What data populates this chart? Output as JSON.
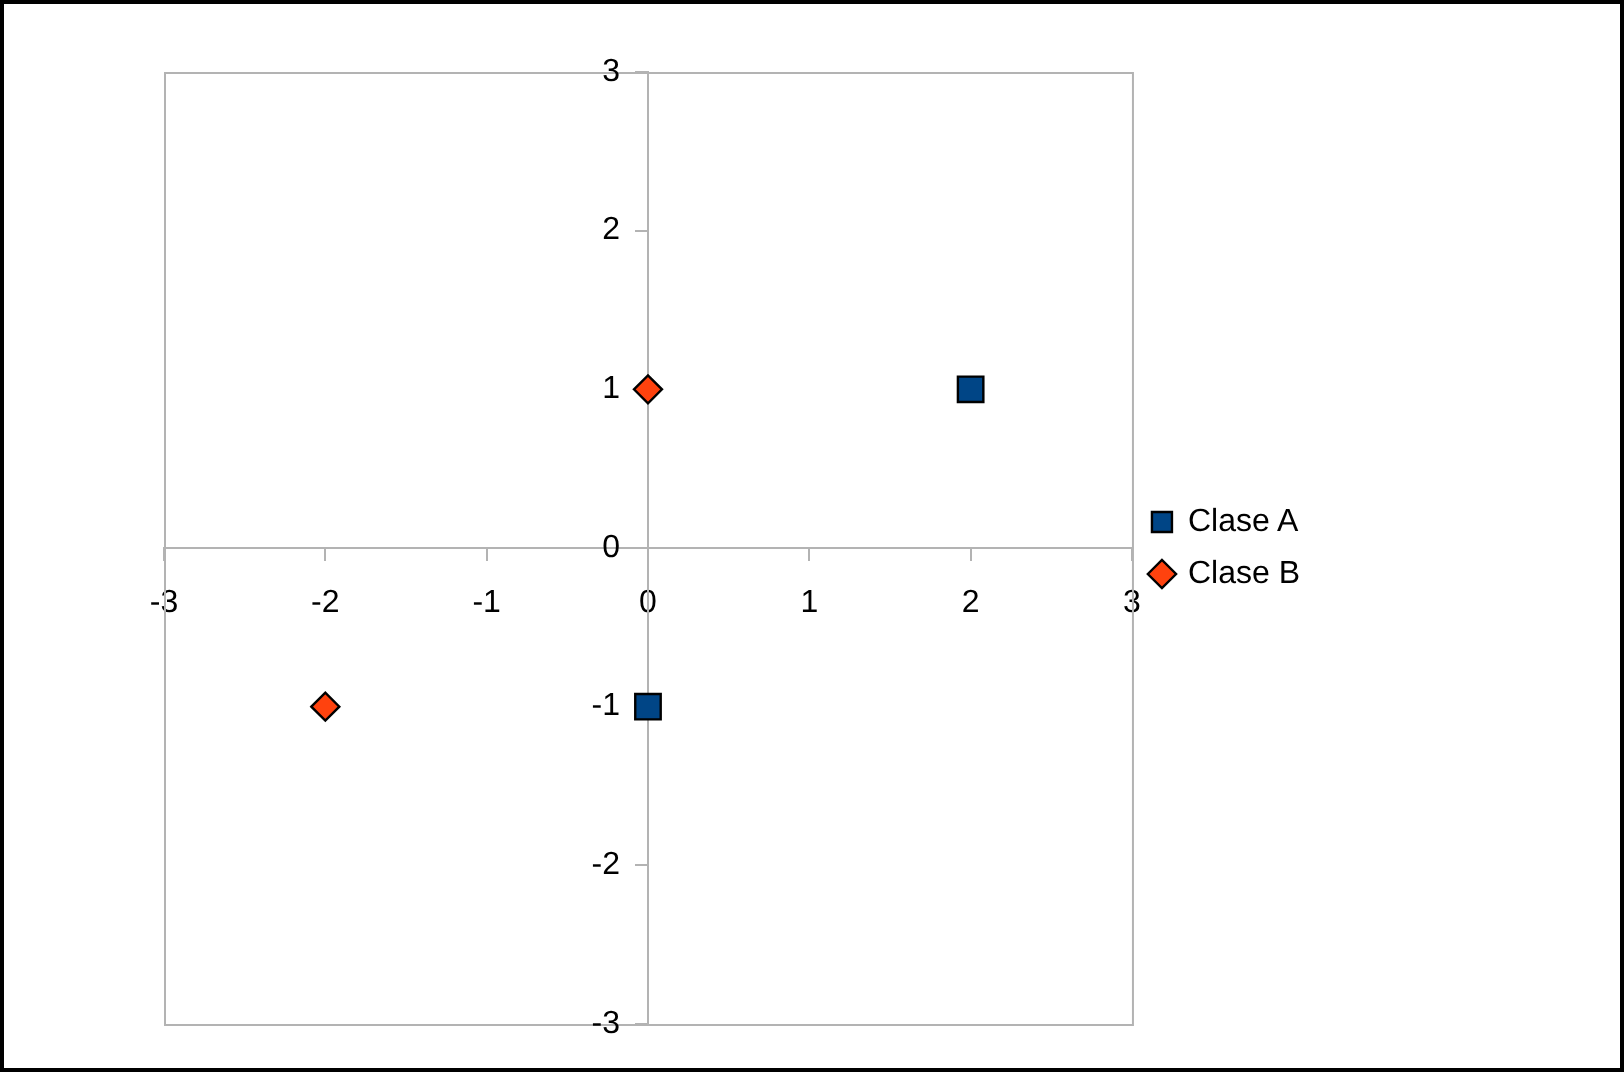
{
  "chart_data": {
    "type": "scatter",
    "legend": "right",
    "grid": false,
    "xlim": [
      -3,
      3
    ],
    "xticks": [
      -3,
      -2,
      -1,
      0,
      1,
      2,
      3
    ],
    "ylim": [
      -3,
      3
    ],
    "yticks": [
      -3,
      -2,
      -1,
      0,
      1,
      2,
      3
    ],
    "series": [
      {
        "name": "Clase A",
        "color": "#004586",
        "marker": "square",
        "x": [
          2,
          0
        ],
        "values": [
          1,
          -1
        ]
      },
      {
        "name": "Clase B",
        "color": "#ff420e",
        "marker": "diamond",
        "x": [
          0,
          -2
        ],
        "values": [
          1,
          -1
        ]
      }
    ]
  }
}
